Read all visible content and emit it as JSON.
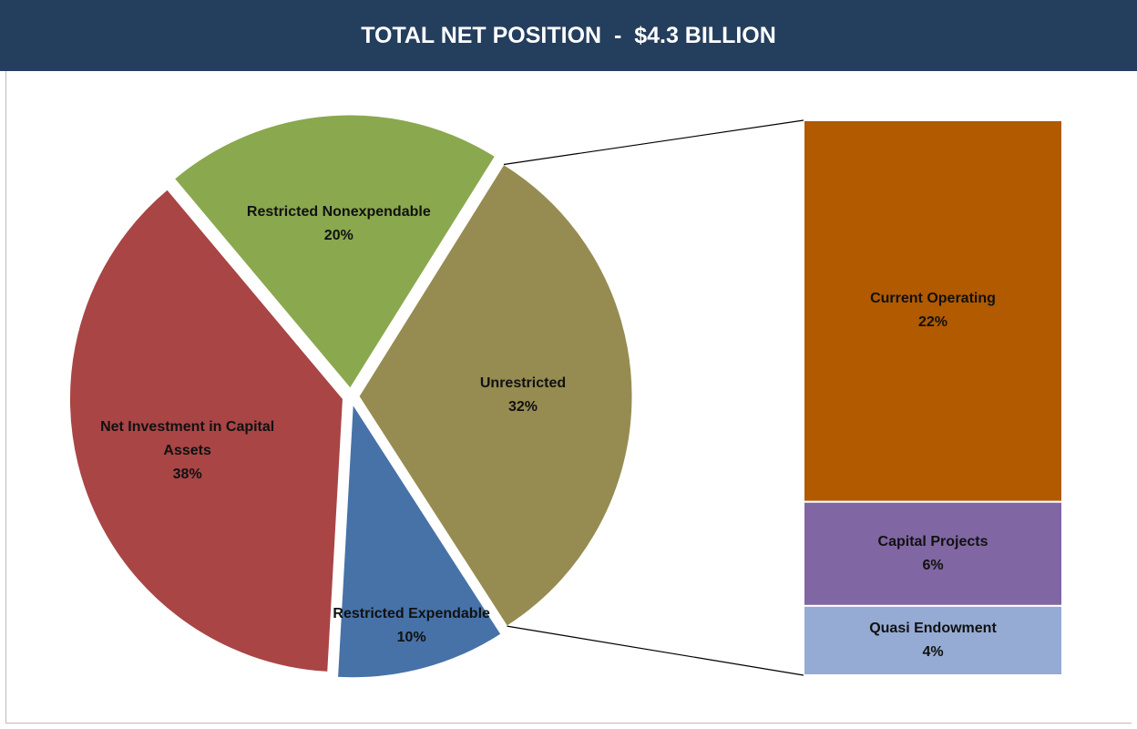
{
  "chart_data": {
    "type": "pie",
    "title": "TOTAL NET POSITION  -  $4.3 BILLION",
    "categories": [
      "Unrestricted",
      "Restricted Expendable",
      "Net Investment in Capital Assets",
      "Restricted Nonexpendable"
    ],
    "values": [
      32,
      10,
      38,
      20
    ],
    "value_labels": [
      "32%",
      "10%",
      "38%",
      "20%"
    ],
    "colors": [
      "#968c52",
      "#4672a8",
      "#a94545",
      "#8aa84e"
    ],
    "bar": {
      "categories": [
        "Current Operating",
        "Capital Projects",
        "Quasi Endowment"
      ],
      "values": [
        22,
        6,
        4
      ],
      "value_labels": [
        "22%",
        "6%",
        "4%"
      ],
      "colors": [
        "#b15a00",
        "#8066a2",
        "#95abd3"
      ]
    }
  }
}
